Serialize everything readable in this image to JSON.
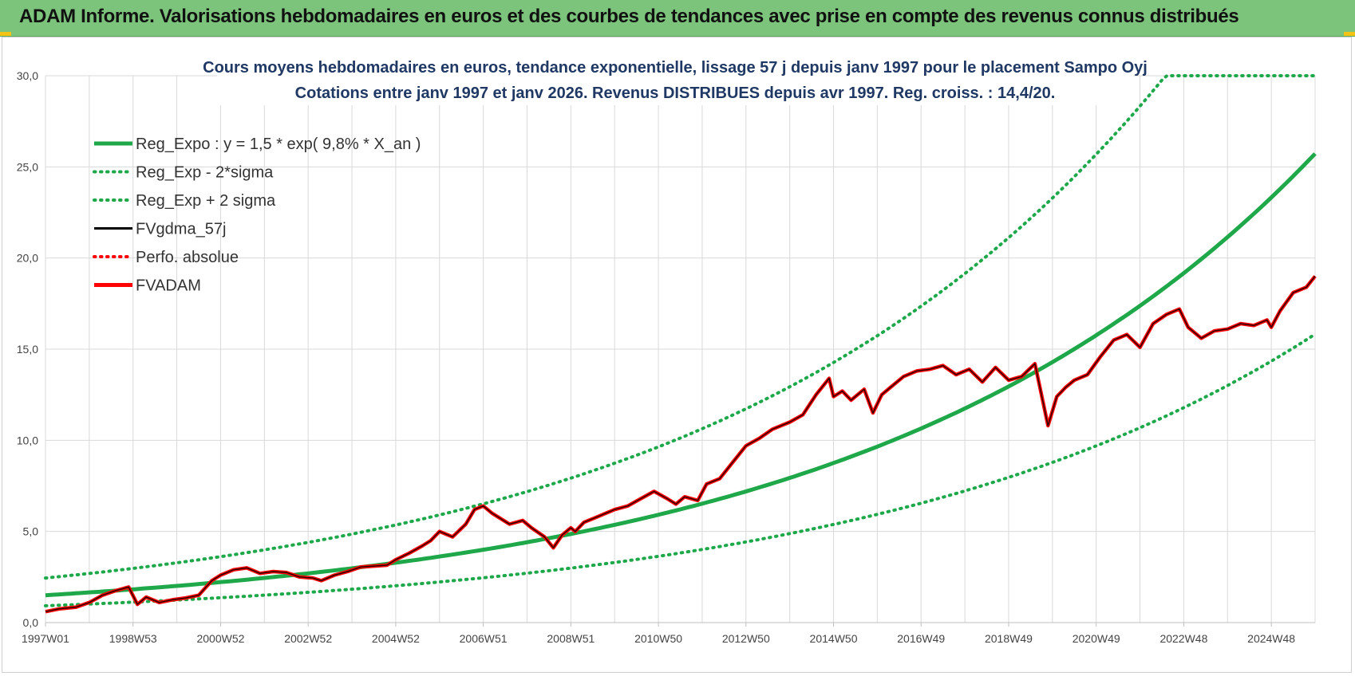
{
  "header": {
    "title": "ADAM Informe. Valorisations hebdomadaires en euros et des courbes de tendances avec prise en compte des revenus connus distribués"
  },
  "colors": {
    "banner": "#7cc47b",
    "reg_green": "#1ea84a",
    "price_red": "#ff0000",
    "fv_black": "#000000",
    "grid": "#d9d9d9",
    "title_blue": "#1f3864"
  },
  "chart_data": {
    "type": "line",
    "title": "Cours moyens hebdomadaires en euros, tendance exponentielle, lissage 57 j depuis janv 1997 pour le placement Sampo Oyj",
    "subtitle": "Cotations entre janv 1997 et janv 2026. Revenus DISTRIBUES depuis avr 1997. Reg. croiss. : 14,4/20.",
    "xlabel": "",
    "ylabel": "",
    "ylim": [
      0,
      30
    ],
    "xlim": [
      1997.0,
      2026.0
    ],
    "y_ticks": [
      "0,0",
      "5,0",
      "10,0",
      "15,0",
      "20,0",
      "25,0",
      "30,0"
    ],
    "y_tick_values": [
      0,
      5,
      10,
      15,
      20,
      25,
      30
    ],
    "x_ticks": [
      "1997W01",
      "1998W53",
      "2000W52",
      "2002W52",
      "2004W52",
      "2006W51",
      "2008W51",
      "2010W50",
      "2012W50",
      "2014W50",
      "2016W49",
      "2018W49",
      "2020W49",
      "2022W48",
      "2024W48"
    ],
    "x_tick_values": [
      1997.0,
      1999.0,
      2001.0,
      2003.0,
      2005.0,
      2007.0,
      2009.0,
      2011.0,
      2013.0,
      2015.0,
      2017.0,
      2019.0,
      2021.0,
      2023.0,
      2025.0
    ],
    "grid": true,
    "legend_position": "top-left",
    "legend": [
      {
        "label": "Reg_Expo : y = 1,5 * exp( 9,8% *  X_an )",
        "style": "solid-thick",
        "color": "#1ea84a"
      },
      {
        "label": "Reg_Exp - 2*sigma",
        "style": "dotted",
        "color": "#1ea84a"
      },
      {
        "label": "Reg_Exp + 2 sigma",
        "style": "dotted",
        "color": "#1ea84a"
      },
      {
        "label": "FVgdma_57j",
        "style": "solid",
        "color": "#000000"
      },
      {
        "label": "Perfo. absolue",
        "style": "dotted",
        "color": "#ff0000"
      },
      {
        "label": "FVADAM",
        "style": "solid-thick",
        "color": "#ff0000"
      }
    ],
    "regression": {
      "a": 1.5,
      "rate": 0.098,
      "lower_factor": 0.615,
      "upper_factor": 1.63,
      "cap": 30
    },
    "series": [
      {
        "name": "FVADAM",
        "x": [
          1997.0,
          1997.3,
          1997.7,
          1998.0,
          1998.3,
          1998.6,
          1998.9,
          1999.1,
          1999.3,
          1999.6,
          1999.9,
          2000.2,
          2000.5,
          2000.8,
          2001.0,
          2001.3,
          2001.6,
          2001.9,
          2002.2,
          2002.5,
          2002.8,
          2003.1,
          2003.3,
          2003.6,
          2003.9,
          2004.2,
          2004.5,
          2004.8,
          2005.0,
          2005.3,
          2005.6,
          2005.8,
          2006.0,
          2006.3,
          2006.6,
          2006.8,
          2007.0,
          2007.2,
          2007.4,
          2007.6,
          2007.9,
          2008.1,
          2008.4,
          2008.6,
          2008.8,
          2009.0,
          2009.1,
          2009.3,
          2009.6,
          2010.0,
          2010.3,
          2010.6,
          2010.9,
          2011.2,
          2011.4,
          2011.6,
          2011.9,
          2012.1,
          2012.4,
          2012.7,
          2013.0,
          2013.3,
          2013.6,
          2014.0,
          2014.3,
          2014.6,
          2014.9,
          2015.0,
          2015.2,
          2015.4,
          2015.7,
          2015.9,
          2016.1,
          2016.3,
          2016.6,
          2016.9,
          2017.2,
          2017.5,
          2017.8,
          2018.1,
          2018.4,
          2018.7,
          2019.0,
          2019.3,
          2019.6,
          2019.9,
          2020.1,
          2020.3,
          2020.5,
          2020.8,
          2021.1,
          2021.4,
          2021.7,
          2022.0,
          2022.3,
          2022.6,
          2022.9,
          2023.1,
          2023.4,
          2023.7,
          2024.0,
          2024.3,
          2024.6,
          2024.9,
          2025.0,
          2025.2,
          2025.5,
          2025.8,
          2026.0
        ],
        "values": [
          0.6,
          0.75,
          0.85,
          1.1,
          1.5,
          1.75,
          1.95,
          1.0,
          1.4,
          1.1,
          1.25,
          1.35,
          1.5,
          2.3,
          2.6,
          2.9,
          3.0,
          2.7,
          2.8,
          2.75,
          2.5,
          2.45,
          2.3,
          2.6,
          2.8,
          3.05,
          3.1,
          3.15,
          3.45,
          3.8,
          4.2,
          4.5,
          5.0,
          4.7,
          5.4,
          6.2,
          6.4,
          6.0,
          5.7,
          5.4,
          5.6,
          5.2,
          4.7,
          4.1,
          4.8,
          5.2,
          5.0,
          5.5,
          5.8,
          6.2,
          6.4,
          6.8,
          7.2,
          6.8,
          6.5,
          6.9,
          6.7,
          7.6,
          7.9,
          8.8,
          9.7,
          10.1,
          10.6,
          11.0,
          11.4,
          12.5,
          13.4,
          12.4,
          12.7,
          12.2,
          12.8,
          11.5,
          12.5,
          12.9,
          13.5,
          13.8,
          13.9,
          14.1,
          13.6,
          13.9,
          13.2,
          14.0,
          13.3,
          13.5,
          14.2,
          10.8,
          12.4,
          12.9,
          13.3,
          13.6,
          14.6,
          15.5,
          15.8,
          15.1,
          16.4,
          16.9,
          17.2,
          16.2,
          15.6,
          16.0,
          16.1,
          16.4,
          16.3,
          16.6,
          16.2,
          17.1,
          18.1,
          18.4,
          19.0
        ]
      }
    ]
  }
}
